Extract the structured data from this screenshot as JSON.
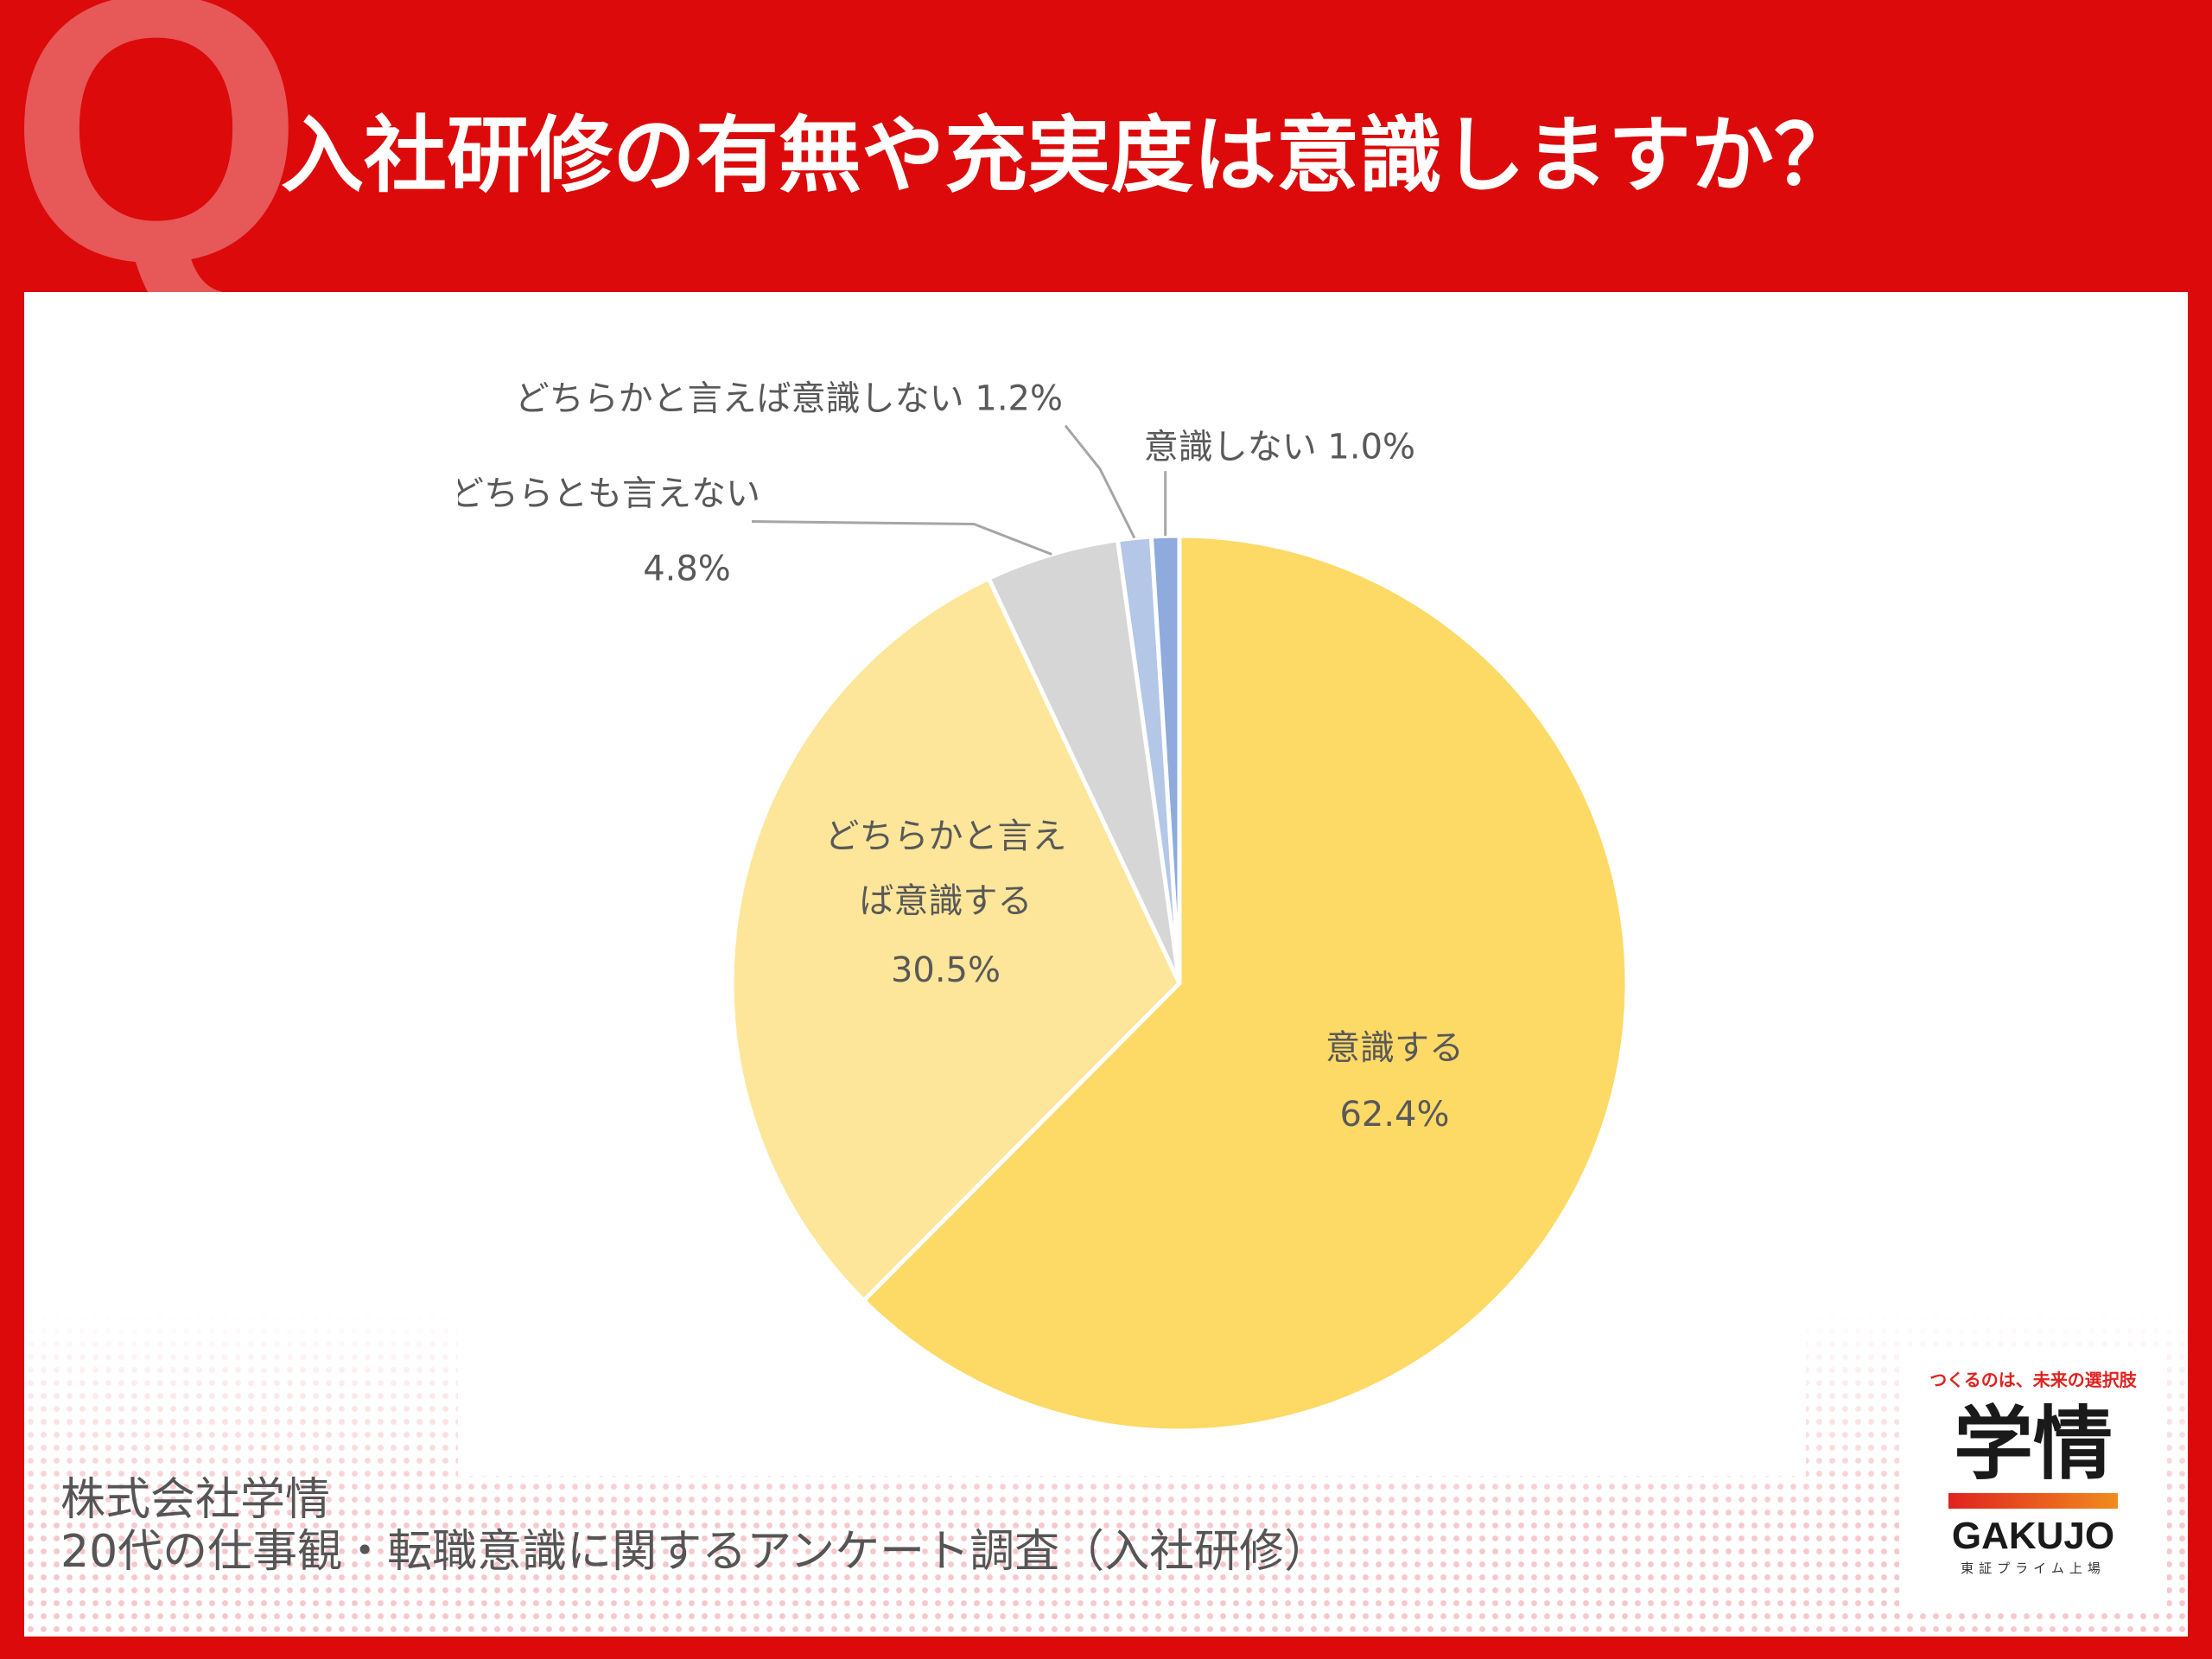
{
  "header": {
    "q_letter": "Q",
    "question": "入社研修の有無や充実度は意識しますか？"
  },
  "chart_data": {
    "type": "pie",
    "title": "入社研修の有無や充実度は意識しますか？",
    "slices": [
      {
        "label": "意識する",
        "value": 62.4,
        "text": "62.4%",
        "color": "#fdd966"
      },
      {
        "label": "どちらかと言えば意識する",
        "value": 30.5,
        "text": "30.5%",
        "color": "#fde699"
      },
      {
        "label": "どちらとも言えない",
        "value": 4.8,
        "text": "4.8%",
        "color": "#d6d6d6"
      },
      {
        "label": "どちらかと言えば意識しない",
        "value": 1.2,
        "text": "1.2%",
        "color": "#b4c7e7"
      },
      {
        "label": "意識しない",
        "value": 1.0,
        "text": "1.0%",
        "color": "#8faadc"
      }
    ],
    "start": "12 o'clock",
    "direction": "clockwise"
  },
  "source": {
    "company": "株式会社学情",
    "survey": "20代の仕事観・転職意識に関するアンケート調査（入社研修）"
  },
  "brand": {
    "tagline": "つくるのは、未来の選択肢",
    "name_kanji": "学情",
    "name_latin": "GAKUJO",
    "listing": "東証プライム上場"
  },
  "colors": {
    "background": "#dc0a0a",
    "panel": "#ffffff",
    "label_text": "#595959"
  }
}
